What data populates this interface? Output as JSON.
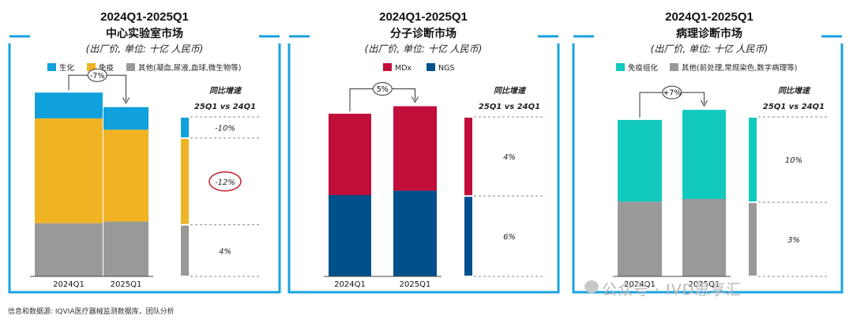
{
  "footer_note": "信息和数据源: IQVIA医疗器械监测数据库，团队分析",
  "watermark": "公众号 · IVD思享汇",
  "chart_data": [
    {
      "type": "bar",
      "stacked": true,
      "title": "2024Q1-2025Q1",
      "subtitle": "中心实验室市场",
      "unit_note": "(出厂价, 单位: 十亿 人民币)",
      "categories": [
        "2024Q1",
        "2025Q1"
      ],
      "series": [
        {
          "name": "其他(凝血,尿液,血球,微生物等)",
          "color": "#999999",
          "values": [
            3.3,
            3.4
          ]
        },
        {
          "name": "免疫",
          "color": "#F0B323",
          "values": [
            6.5,
            5.7
          ]
        },
        {
          "name": "生化",
          "color": "#10A0DC",
          "values": [
            1.6,
            1.4
          ]
        }
      ],
      "change_label": "-7%",
      "growth_header": "同比增速",
      "growth_subheader": "25Q1 vs 24Q1",
      "growth": [
        "4%",
        "-12%",
        "-10%"
      ],
      "highlight_growth_index": 1,
      "ylim": [
        0,
        12
      ]
    },
    {
      "type": "bar",
      "stacked": true,
      "title": "2024Q1-2025Q1",
      "subtitle": "分子诊断市场",
      "unit_note": "(出厂价, 单位: 十亿 人民币)",
      "categories": [
        "2024Q1",
        "2025Q1"
      ],
      "series": [
        {
          "name": "NGS",
          "color": "#00508C",
          "values": [
            1.85,
            1.95
          ]
        },
        {
          "name": "MDx",
          "color": "#C20E3A",
          "values": [
            1.85,
            1.92
          ]
        }
      ],
      "change_label": "5%",
      "growth_header": "同比增速",
      "growth_subheader": "25Q1 vs 24Q1",
      "growth": [
        "6%",
        "4%"
      ],
      "ylim": [
        0,
        4.4
      ]
    },
    {
      "type": "bar",
      "stacked": true,
      "title": "2024Q1-2025Q1",
      "subtitle": "病理诊断市场",
      "unit_note": "(出厂价, 单位: 十亿 人民币)",
      "categories": [
        "2024Q1",
        "2025Q1"
      ],
      "series": [
        {
          "name": "其他(前处理,常规染色,数字病理等)",
          "color": "#999999",
          "values": [
            0.89,
            0.92
          ]
        },
        {
          "name": "免疫组化",
          "color": "#12C9BE",
          "values": [
            0.97,
            1.06
          ]
        }
      ],
      "change_label": "+7%",
      "growth_header": "同比增速",
      "growth_subheader": "25Q1 vs 24Q1",
      "growth": [
        "3%",
        "10%"
      ],
      "ylim": [
        0,
        2.3
      ]
    }
  ]
}
